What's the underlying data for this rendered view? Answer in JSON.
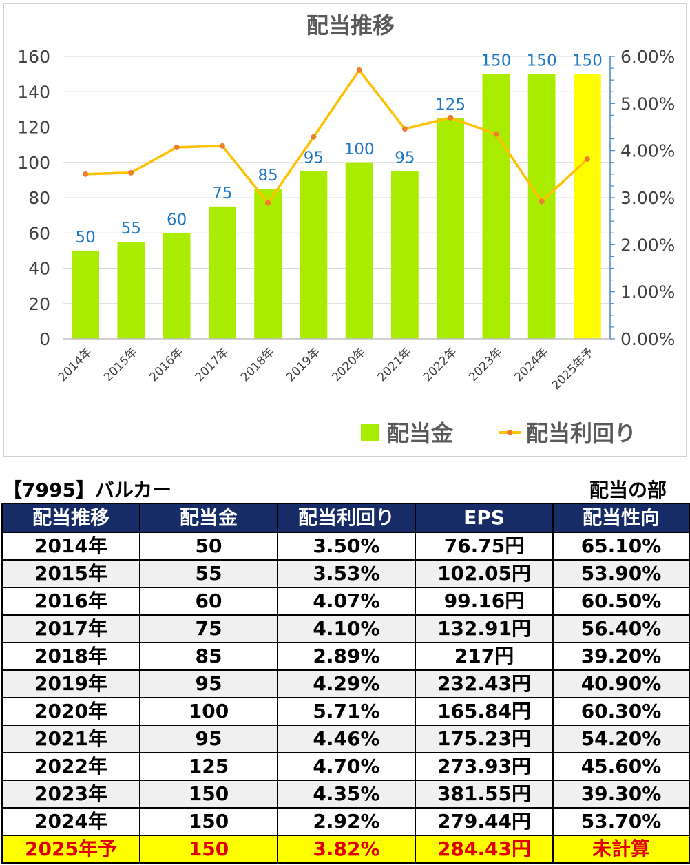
{
  "chart_data": {
    "type": "bar",
    "title": "配当推移",
    "categories": [
      "2014年",
      "2015年",
      "2016年",
      "2017年",
      "2018年",
      "2019年",
      "2020年",
      "2021年",
      "2022年",
      "2023年",
      "2024年",
      "2025年予"
    ],
    "series": [
      {
        "name": "配当金",
        "type": "bar",
        "axis": "left",
        "color": "#aaec00",
        "highlight_last_color": "#ffff00",
        "values": [
          50,
          55,
          60,
          75,
          85,
          95,
          100,
          95,
          125,
          150,
          150,
          150
        ]
      },
      {
        "name": "配当利回り",
        "type": "line",
        "axis": "right",
        "color": "#ffc000",
        "marker_color": "#ed7d31",
        "values": [
          3.5,
          3.53,
          4.07,
          4.1,
          2.89,
          4.29,
          5.71,
          4.46,
          4.7,
          4.35,
          2.92,
          3.82
        ]
      }
    ],
    "data_labels": [
      "50",
      "55",
      "60",
      "75",
      "85",
      "95",
      "100",
      "95",
      "125",
      "150",
      "150",
      "150"
    ],
    "y_left": {
      "min": 0,
      "max": 160,
      "step": 20,
      "ticks": [
        "0",
        "20",
        "40",
        "60",
        "80",
        "100",
        "120",
        "140",
        "160"
      ]
    },
    "y_right": {
      "min": 0,
      "max": 6,
      "step": 1,
      "ticks": [
        "0.00%",
        "1.00%",
        "2.00%",
        "3.00%",
        "4.00%",
        "5.00%",
        "6.00%"
      ]
    },
    "gridlines": true,
    "legend_position": "bottom-right",
    "label_color": "#1f77c4"
  },
  "caption": {
    "left": "【7995】バルカー",
    "right": "配当の部"
  },
  "table": {
    "headers": [
      "配当推移",
      "配当金",
      "配当利回り",
      "EPS",
      "配当性向"
    ],
    "rows": [
      [
        "2014年",
        "50",
        "3.50%",
        "76.75円",
        "65.10%"
      ],
      [
        "2015年",
        "55",
        "3.53%",
        "102.05円",
        "53.90%"
      ],
      [
        "2016年",
        "60",
        "4.07%",
        "99.16円",
        "60.50%"
      ],
      [
        "2017年",
        "75",
        "4.10%",
        "132.91円",
        "56.40%"
      ],
      [
        "2018年",
        "85",
        "2.89%",
        "217円",
        "39.20%"
      ],
      [
        "2019年",
        "95",
        "4.29%",
        "232.43円",
        "40.90%"
      ],
      [
        "2020年",
        "100",
        "5.71%",
        "165.84円",
        "60.30%"
      ],
      [
        "2021年",
        "95",
        "4.46%",
        "175.23円",
        "54.20%"
      ],
      [
        "2022年",
        "125",
        "4.70%",
        "273.93円",
        "45.60%"
      ],
      [
        "2023年",
        "150",
        "4.35%",
        "381.55円",
        "39.30%"
      ],
      [
        "2024年",
        "150",
        "2.92%",
        "279.44円",
        "53.70%"
      ],
      [
        "2025年予",
        "150",
        "3.82%",
        "284.43円",
        "未計算"
      ]
    ],
    "header_color": "#172c66",
    "forecast_bg": "#ffff00",
    "forecast_text": "#e00000"
  }
}
